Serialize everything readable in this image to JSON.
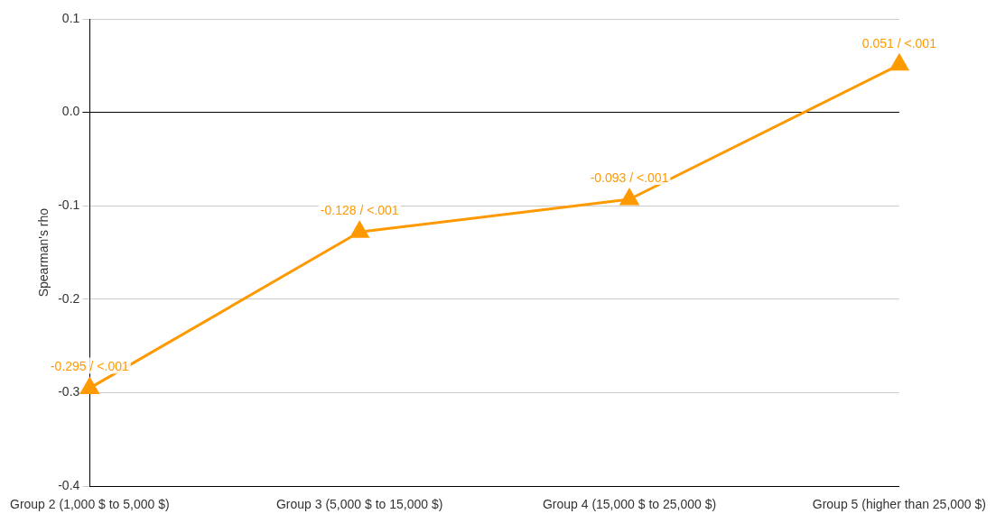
{
  "chart_data": {
    "type": "line",
    "ylabel": "Spearman's rho",
    "categories": [
      "Group 2 (1,000 $ to 5,000 $)",
      "Group 3 (5,000 $ to 15,000 $)",
      "Group 4 (15,000 $ to 25,000 $)",
      "Group 5 (higher than 25,000 $)"
    ],
    "series": [
      {
        "color": "#ff9900",
        "values": [
          -0.295,
          -0.128,
          -0.093,
          0.051
        ],
        "value_labels": [
          "-0.295 / <.001",
          "-0.128 / <.001",
          "-0.093 / <.001",
          "0.051 / <.001"
        ]
      }
    ],
    "ylim": [
      -0.4,
      0.1
    ],
    "yticks": [
      {
        "value": -0.4,
        "label": "-0.4"
      },
      {
        "value": -0.3,
        "label": "-0.3"
      },
      {
        "value": -0.2,
        "label": "-0.2"
      },
      {
        "value": -0.1,
        "label": "-0.1"
      },
      {
        "value": 0,
        "label": "0.0"
      },
      {
        "value": 0.1,
        "label": "0.1"
      }
    ],
    "grid": "y",
    "legend": false,
    "marker": "triangle",
    "line_style": "solid"
  }
}
